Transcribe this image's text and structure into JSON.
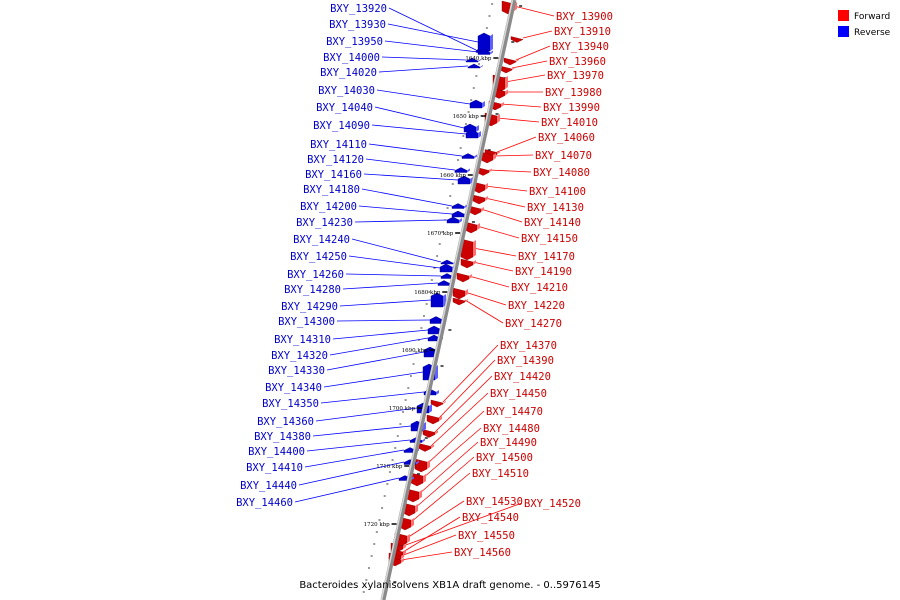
{
  "caption": "Bacteroides xylanisolvens XB1A draft genome. - 0..5976145",
  "legend": {
    "forward_label": "Forward",
    "reverse_label": "Reverse",
    "forward_color": "#ff0000",
    "reverse_color": "#0000ff"
  },
  "scale_labels": [
    "1640 kbp",
    "1650 kbp",
    "1660 kbp",
    "1670 kbp",
    "1680 kbp",
    "1690 kbp",
    "1700 kbp",
    "1710 kbp",
    "1720 kbp"
  ],
  "forward_genes": [
    "BXY_13900",
    "BXY_13910",
    "BXY_13940",
    "BXY_13960",
    "BXY_13970",
    "BXY_13980",
    "BXY_13990",
    "BXY_14010",
    "BXY_14060",
    "BXY_14070",
    "BXY_14080",
    "BXY_14100",
    "BXY_14130",
    "BXY_14140",
    "BXY_14150",
    "BXY_14170",
    "BXY_14190",
    "BXY_14210",
    "BXY_14220",
    "BXY_14270",
    "BXY_14370",
    "BXY_14390",
    "BXY_14420",
    "BXY_14450",
    "BXY_14470",
    "BXY_14480",
    "BXY_14490",
    "BXY_14500",
    "BXY_14510",
    "BXY_14530",
    "BXY_14520",
    "BXY_14540",
    "BXY_14550",
    "BXY_14560"
  ],
  "reverse_genes": [
    "BXY_13920",
    "BXY_13930",
    "BXY_13950",
    "BXY_14000",
    "BXY_14020",
    "BXY_14030",
    "BXY_14040",
    "BXY_14090",
    "BXY_14110",
    "BXY_14120",
    "BXY_14160",
    "BXY_14180",
    "BXY_14200",
    "BXY_14230",
    "BXY_14240",
    "BXY_14250",
    "BXY_14260",
    "BXY_14280",
    "BXY_14290",
    "BXY_14300",
    "BXY_14310",
    "BXY_14320",
    "BXY_14330",
    "BXY_14340",
    "BXY_14350",
    "BXY_14360",
    "BXY_14380",
    "BXY_14400",
    "BXY_14410",
    "BXY_14440",
    "BXY_14460"
  ]
}
